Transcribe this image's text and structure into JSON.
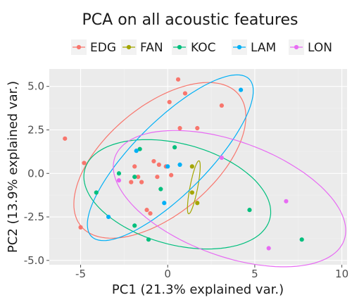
{
  "chart_data": {
    "type": "scatter",
    "title": "PCA on all acoustic features",
    "xlabel": "PC1 (21.3% explained var.)",
    "ylabel": "PC2 (13.9% explained var.)",
    "xlim": [
      -6.8,
      10.3
    ],
    "ylim": [
      -5.25,
      6.0
    ],
    "xticks": [
      -5,
      0,
      5,
      10
    ],
    "xtick_labels": [
      "-5",
      "0",
      "5",
      "10"
    ],
    "yticks": [
      -5,
      -2.5,
      0,
      2.5,
      5
    ],
    "ytick_labels": [
      "-5.0",
      "-2.5",
      "0.0",
      "2.5",
      "5.0"
    ],
    "grid": true,
    "legend_position": "top",
    "series": [
      {
        "name": "EDG",
        "color": "#F8766D",
        "points": [
          [
            0.6,
            5.4
          ],
          [
            1.0,
            4.6
          ],
          [
            0.1,
            4.1
          ],
          [
            3.1,
            3.9
          ],
          [
            0.7,
            2.6
          ],
          [
            1.7,
            2.6
          ],
          [
            -5.9,
            2.0
          ],
          [
            -4.8,
            0.6
          ],
          [
            -0.8,
            0.7
          ],
          [
            -1.9,
            0.4
          ],
          [
            -0.5,
            0.5
          ],
          [
            -0.1,
            0.4
          ],
          [
            -1.7,
            -0.2
          ],
          [
            -0.6,
            -0.2
          ],
          [
            0.2,
            -0.1
          ],
          [
            -2.1,
            -0.5
          ],
          [
            -1.5,
            -0.5
          ],
          [
            -1.2,
            -2.1
          ],
          [
            -1.0,
            -2.3
          ],
          [
            -5.0,
            -3.1
          ]
        ]
      },
      {
        "name": "FAN",
        "color": "#A3A500",
        "points": [
          [
            1.4,
            0.4
          ],
          [
            1.4,
            -1.1
          ],
          [
            1.7,
            -1.7
          ]
        ]
      },
      {
        "name": "KOC",
        "color": "#00BF7D",
        "points": [
          [
            0.4,
            1.5
          ],
          [
            -1.6,
            1.4
          ],
          [
            -2.8,
            0.0
          ],
          [
            -1.9,
            -0.2
          ],
          [
            -4.1,
            -1.1
          ],
          [
            -0.4,
            -0.9
          ],
          [
            4.7,
            -2.1
          ],
          [
            -1.9,
            -3.0
          ],
          [
            -1.1,
            -3.8
          ],
          [
            7.7,
            -3.8
          ]
        ]
      },
      {
        "name": "LAM",
        "color": "#00B0F6",
        "points": [
          [
            4.2,
            4.8
          ],
          [
            -1.8,
            1.3
          ],
          [
            0.7,
            0.5
          ],
          [
            0.0,
            0.4
          ],
          [
            -0.2,
            -1.7
          ],
          [
            -3.4,
            -2.5
          ]
        ]
      },
      {
        "name": "LON",
        "color": "#E76BF3",
        "points": [
          [
            3.1,
            0.9
          ],
          [
            -2.8,
            -0.4
          ],
          [
            6.8,
            -1.6
          ],
          [
            5.8,
            -4.3
          ]
        ]
      }
    ],
    "ellipses": [
      {
        "series": "EDG",
        "center": [
          -0.45,
          0.75
        ],
        "rx": 5.9,
        "ry": 3.1,
        "angle_deg": 40
      },
      {
        "series": "FAN",
        "center": [
          1.5,
          -0.8
        ],
        "rx": 1.55,
        "ry": 0.22,
        "angle_deg": 79
      },
      {
        "series": "KOC",
        "center": [
          0.55,
          -1.2
        ],
        "rx": 5.5,
        "ry": 2.9,
        "angle_deg": -15
      },
      {
        "series": "LAM",
        "center": [
          0.15,
          0.9
        ],
        "rx": 6.4,
        "ry": 2.1,
        "angle_deg": 45
      },
      {
        "series": "LON",
        "center": [
          3.55,
          -1.45
        ],
        "rx": 7.0,
        "ry": 3.3,
        "angle_deg": -20
      }
    ]
  }
}
